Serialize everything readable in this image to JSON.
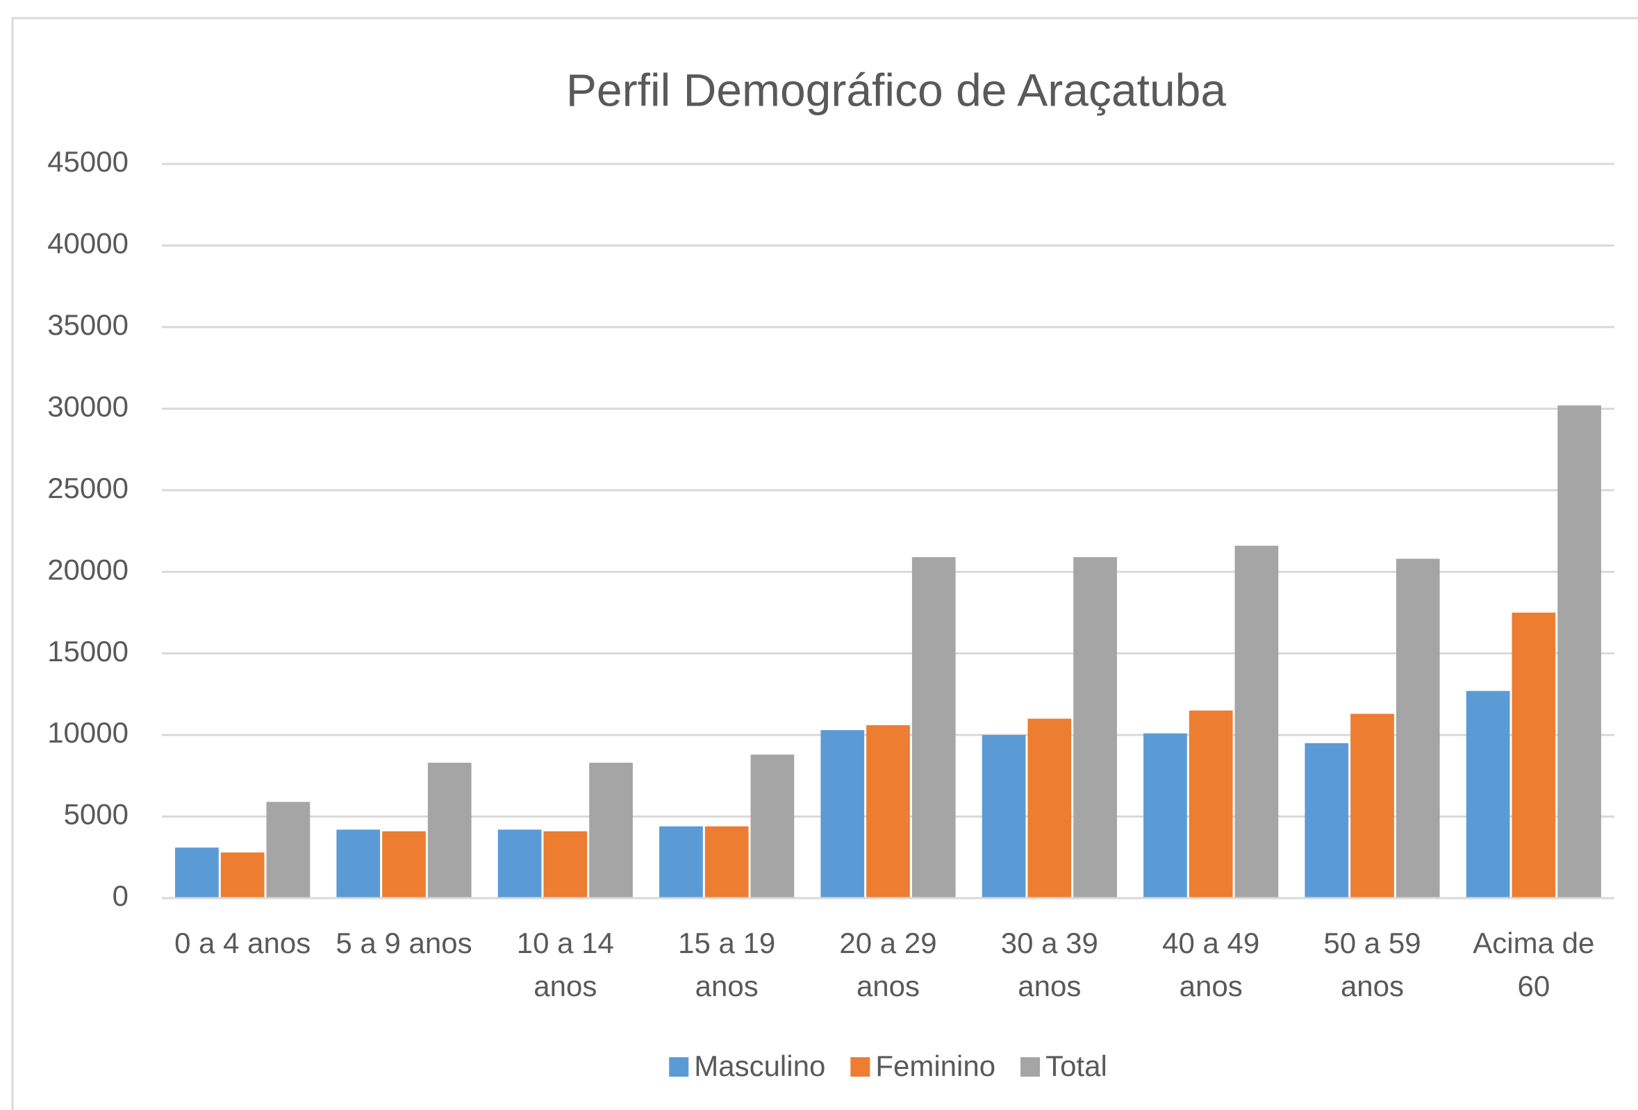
{
  "chart_data": {
    "type": "bar",
    "title": "Perfil Demográfico de Araçatuba",
    "categories": [
      "0 a 4 anos",
      "5 a 9 anos",
      "10 a 14 anos",
      "15 a 19 anos",
      "20 a 29 anos",
      "30 a 39 anos",
      "40 a 49 anos",
      "50 a 59 anos",
      "Acima de 60"
    ],
    "series": [
      {
        "name": "Masculino",
        "color": "#5b9bd5",
        "values": [
          3100,
          4200,
          4200,
          4400,
          10300,
          10000,
          10100,
          9500,
          12700
        ]
      },
      {
        "name": "Feminino",
        "color": "#ed7d31",
        "values": [
          2800,
          4100,
          4100,
          4400,
          10600,
          11000,
          11500,
          11300,
          17500
        ]
      },
      {
        "name": "Total",
        "color": "#a5a5a5",
        "values": [
          5900,
          8300,
          8300,
          8800,
          20900,
          20900,
          21600,
          20800,
          30200
        ]
      }
    ],
    "ylim": [
      0,
      45000
    ],
    "yticks": [
      0,
      5000,
      10000,
      15000,
      20000,
      25000,
      30000,
      35000,
      40000,
      45000
    ],
    "grid": true,
    "legend": "bottom"
  }
}
